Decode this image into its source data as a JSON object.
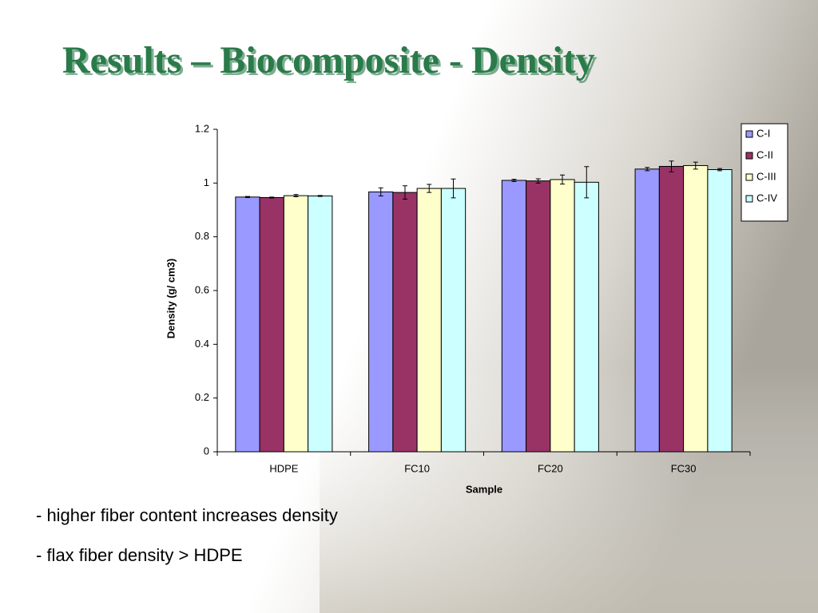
{
  "title": "Results – Biocomposite - Density",
  "bullets": [
    "- higher fiber content increases density",
    "- flax fiber density > HDPE"
  ],
  "chart_data": {
    "type": "bar",
    "categories": [
      "HDPE",
      "FC10",
      "FC20",
      "FC30"
    ],
    "series": [
      {
        "name": "C-I",
        "color": "#9999ff",
        "values": [
          0.948,
          0.967,
          1.01,
          1.052
        ],
        "errors": [
          0.002,
          0.015,
          0.004,
          0.006
        ]
      },
      {
        "name": "C-II",
        "color": "#993366",
        "values": [
          0.946,
          0.965,
          1.008,
          1.062
        ],
        "errors": [
          0.002,
          0.025,
          0.008,
          0.02
        ]
      },
      {
        "name": "C-III",
        "color": "#ffffcc",
        "values": [
          0.953,
          0.98,
          1.013,
          1.065
        ],
        "errors": [
          0.004,
          0.015,
          0.017,
          0.013
        ]
      },
      {
        "name": "C-IV",
        "color": "#ccffff",
        "values": [
          0.952,
          0.98,
          1.003,
          1.05
        ],
        "errors": [
          0.002,
          0.035,
          0.058,
          0.004
        ]
      }
    ],
    "xlabel": "Sample",
    "ylabel": "Density (g/ cm3)",
    "ylim": [
      0,
      1.2
    ],
    "yticks": [
      0,
      0.2,
      0.4,
      0.6,
      0.8,
      1,
      1.2
    ],
    "legend": "upper right"
  }
}
